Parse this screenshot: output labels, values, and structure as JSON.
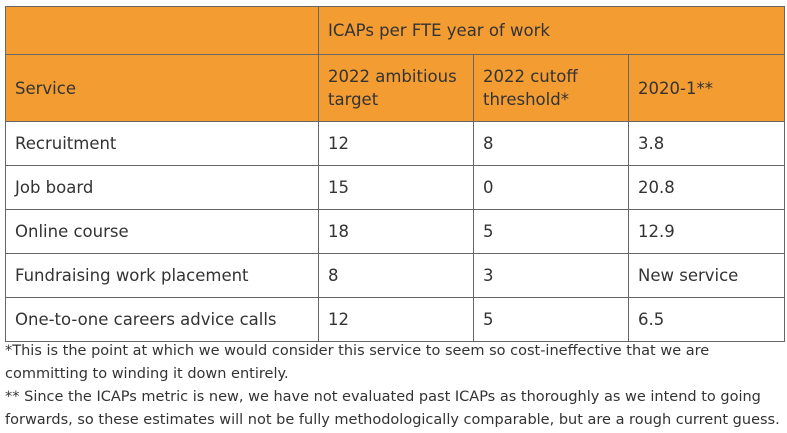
{
  "table": {
    "group_header": "ICAPs per FTE year of work",
    "columns": [
      "Service",
      "2022 ambitious target",
      "2022 cutoff threshold*",
      "2020-1**"
    ],
    "rows": [
      {
        "service": "Recruitment",
        "target": "12",
        "cutoff": "8",
        "past": "3.8"
      },
      {
        "service": "Job board",
        "target": "15",
        "cutoff": "0",
        "past": "20.8"
      },
      {
        "service": "Online course",
        "target": "18",
        "cutoff": "5",
        "past": "12.9"
      },
      {
        "service": "Fundraising work placement",
        "target": "8",
        "cutoff": "3",
        "past": "New service"
      },
      {
        "service": "One-to-one careers advice calls",
        "target": "12",
        "cutoff": "5",
        "past": "6.5"
      }
    ]
  },
  "footnotes": [
    "*This is the point at which we would consider this service to seem so cost-ineffective that we are committing to winding it down entirely.",
    "** Since the ICAPs metric is new, we have not evaluated past ICAPs as thoroughly as we intend to going forwards, so these estimates will not be fully methodologically comparable, but are a rough current guess."
  ],
  "colors": {
    "header_bg": "#f39c32",
    "border": "#666666",
    "text": "#333333"
  }
}
